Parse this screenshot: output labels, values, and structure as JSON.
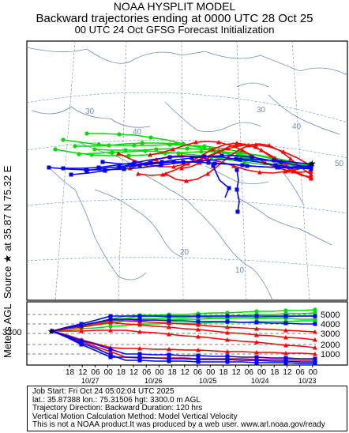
{
  "header": {
    "line1": "NOAA HYSPLIT MODEL",
    "line2": "Backward trajectories ending at 0000 UTC 28 Oct 25",
    "line3": "00 UTC 24 Oct    GFSG  Forecast Initialization"
  },
  "source_label": {
    "star": "★",
    "text": "Source ★ at  35.87 N  75.32 E"
  },
  "map": {
    "lat_labels": [
      "30",
      "40",
      "20",
      "10",
      "30",
      "40",
      "50"
    ],
    "colors": {
      "red": "#ff0000",
      "blue": "#0000ff",
      "green": "#00dd00",
      "grid": "#6a8fb8",
      "coast": "#6a8fb8"
    }
  },
  "profile": {
    "ylabel": "Meters AGL",
    "start_height": "3300",
    "y_ticks": [
      "5000",
      "4000",
      "3000",
      "2000",
      "1000"
    ],
    "x_ticks": [
      "18",
      "12",
      "06",
      "00",
      "18",
      "12",
      "06",
      "00",
      "18",
      "12",
      "06",
      "00",
      "18",
      "12",
      "06",
      "00",
      "18",
      "12",
      "06",
      "00"
    ],
    "date_labels": [
      "10/27",
      "10/26",
      "10/25",
      "10/24",
      "10/23"
    ]
  },
  "footer": {
    "line1": "Job Start: Fri Oct 24 05:02:04 UTC 2025",
    "line2": "lat.: 35.87388   lon.: 75.31506   hgt: 3300.0 m AGL",
    "line3": "Trajectory Direction: Backward       Duration: 120 hrs",
    "line4": "Vertical Motion Calculation Method: Model Vertical Velocity",
    "line5": "This is not a NOAA product.It was produced by a web user. www.arl.noaa.gov/ready"
  }
}
